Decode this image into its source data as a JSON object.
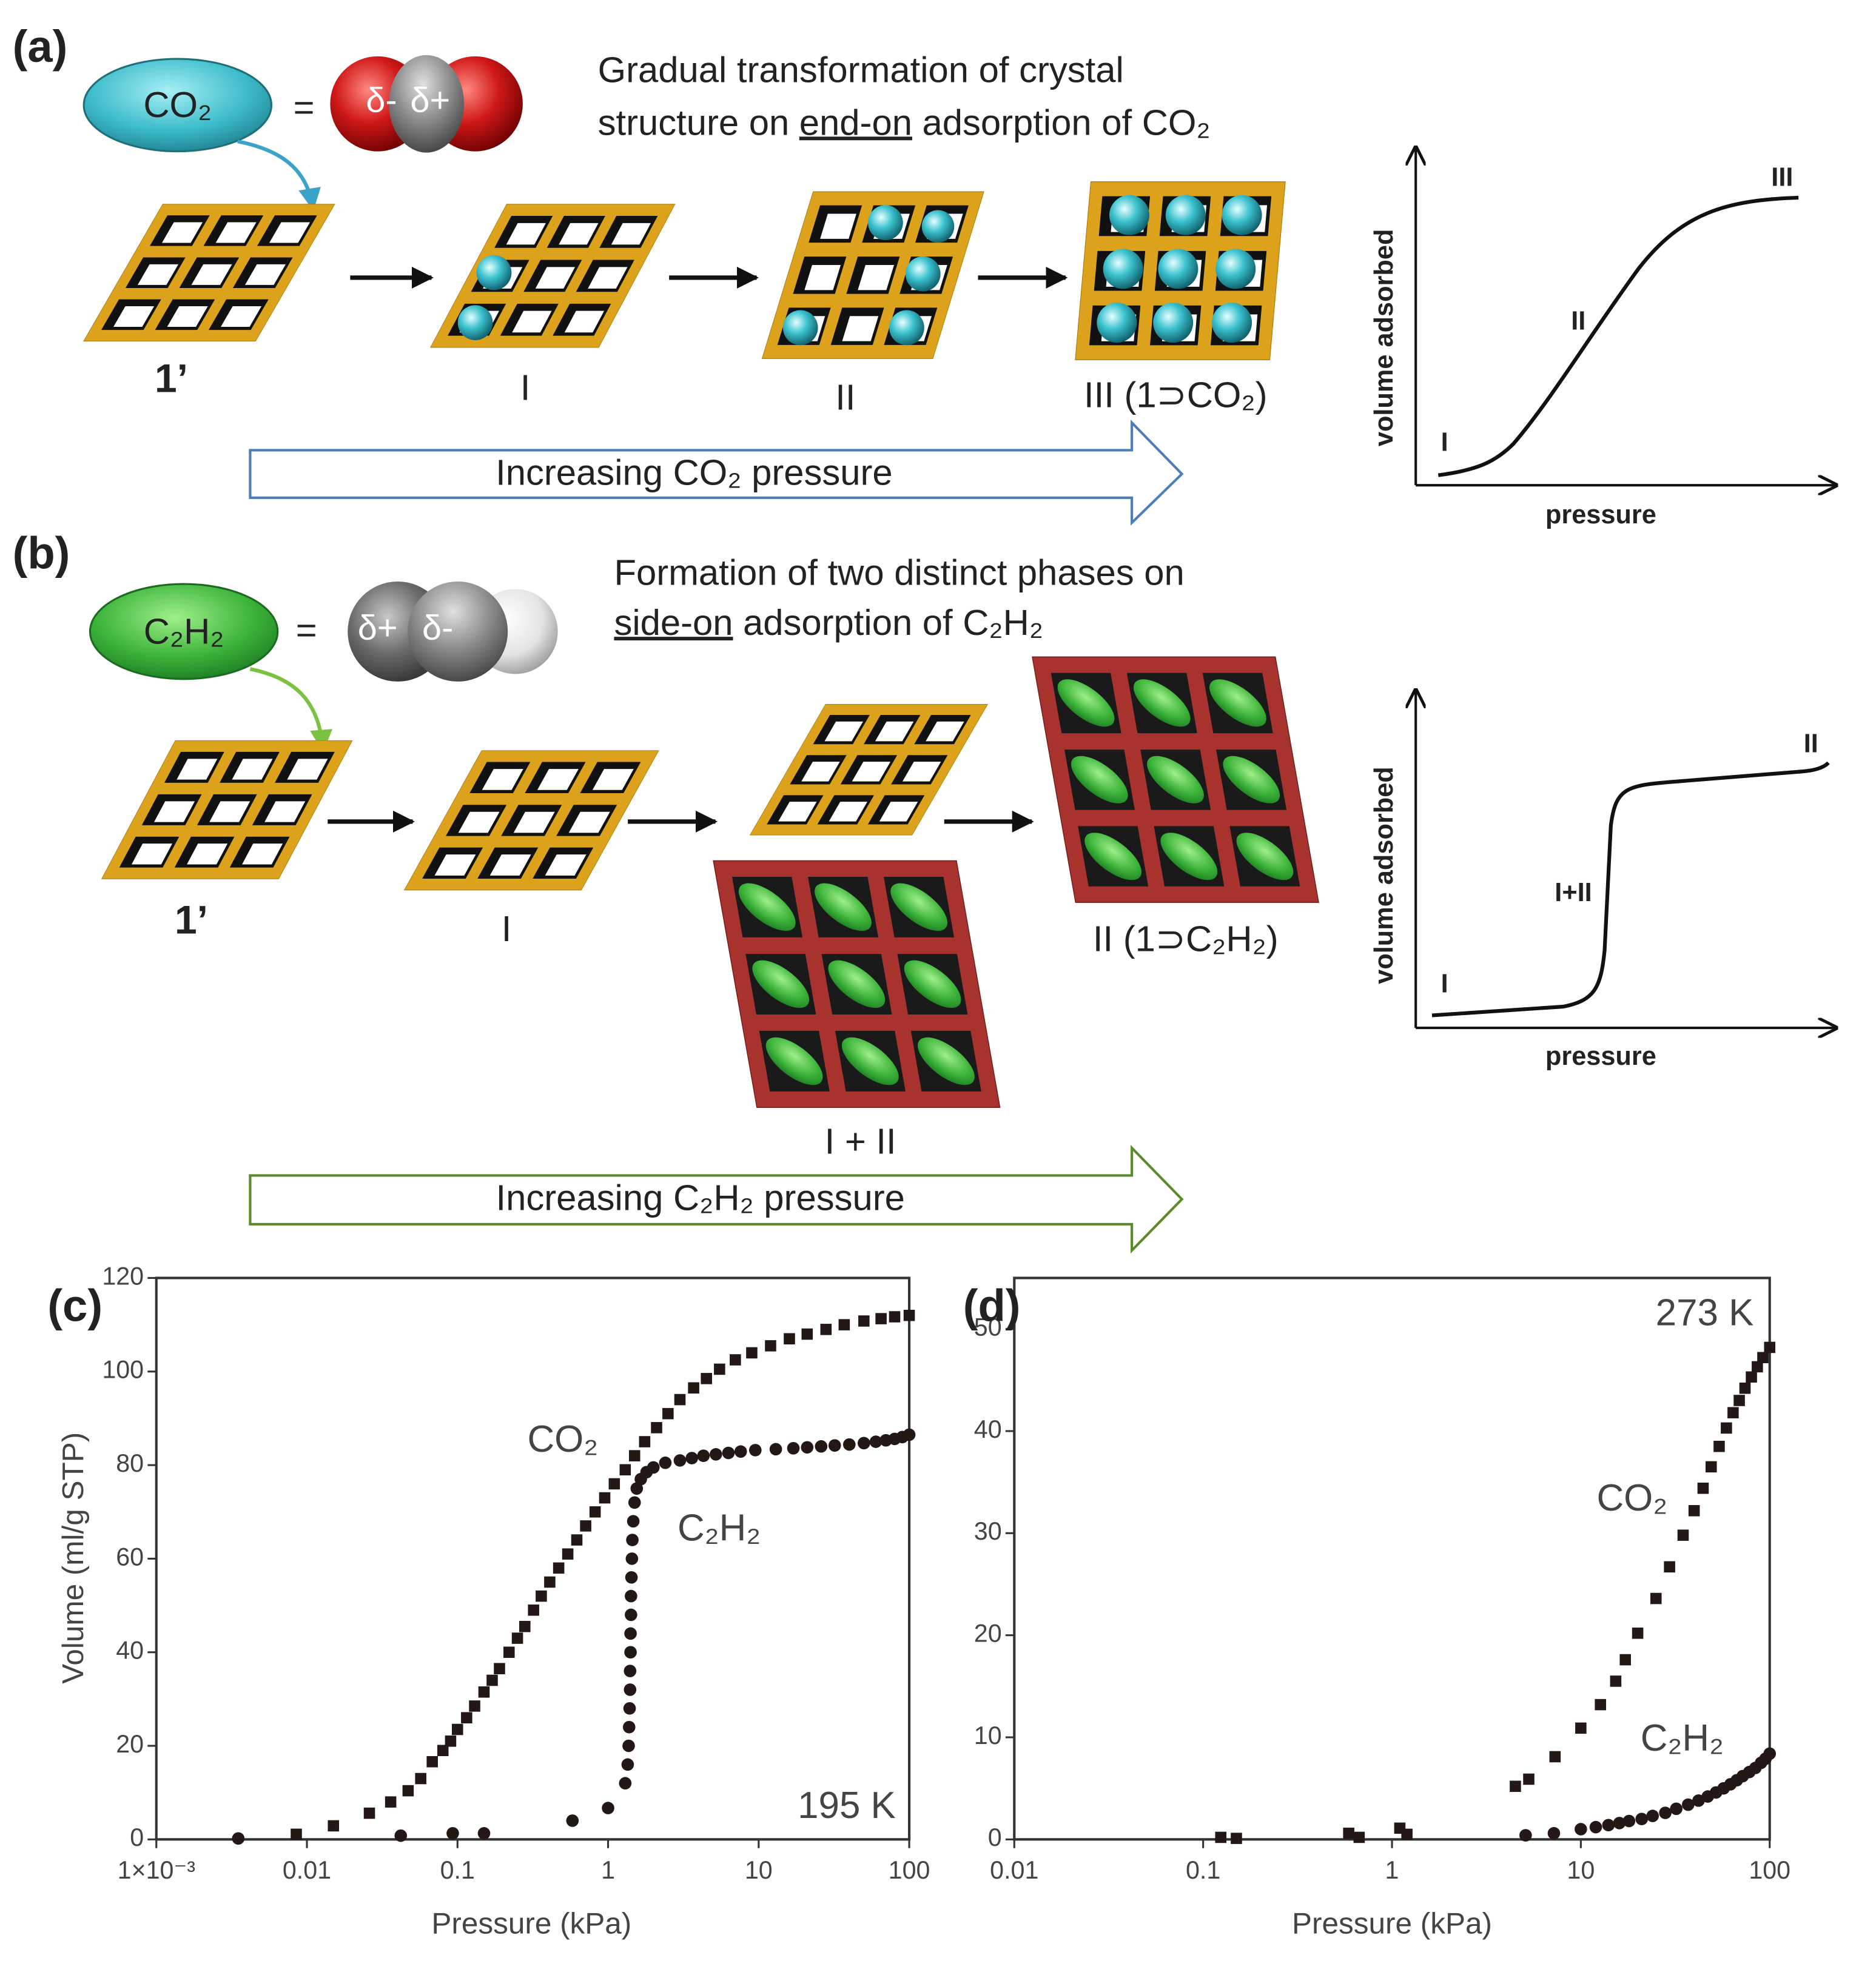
{
  "panel_a": {
    "label": "(a)",
    "molecule": "CO₂",
    "equals": "=",
    "charges": [
      "δ-",
      "δ+"
    ],
    "description": {
      "line1": "Gradual transformation of crystal",
      "line2": [
        "structure on",
        "end-on",
        "adsorption of CO₂"
      ]
    },
    "stages": [
      "1’",
      "I",
      "II",
      "III (1⊃CO₂)"
    ],
    "arrow": "Increasing CO₂ pressure",
    "sketch": {
      "y_label": "volume adsorbed",
      "x_label": "pressure",
      "stage_labels": [
        "I",
        "II",
        "III"
      ]
    }
  },
  "panel_b": {
    "label": "(b)",
    "molecule": "C₂H₂",
    "equals": "=",
    "charges": [
      "δ+",
      "δ-"
    ],
    "description": {
      "line1": "Formation of two distinct phases on",
      "line2": [
        "side-on",
        "adsorption of C₂H₂"
      ]
    },
    "stages": [
      "1’",
      "I",
      "I + II",
      "II (1⊃C₂H₂)"
    ],
    "arrow": "Increasing C₂H₂ pressure",
    "sketch": {
      "y_label": "volume adsorbed",
      "x_label": "pressure",
      "stage_labels": [
        "I",
        "I+II",
        "II"
      ]
    }
  },
  "chart_data": [
    {
      "type": "scatter",
      "panel_label": "(c)",
      "x_label": "Pressure (kPa)",
      "y_label": "Volume (ml/g STP)",
      "xscale": "log",
      "xlim": [
        0.001,
        100
      ],
      "xticks": [
        {
          "value": 0.001,
          "label": "1×10⁻³"
        },
        0.01,
        0.1,
        1,
        10,
        100
      ],
      "ylim": [
        0,
        120
      ],
      "yticks": [
        0,
        20,
        40,
        60,
        80,
        100,
        120
      ],
      "annotations": [
        "CO₂",
        "C₂H₂",
        "195 K"
      ],
      "series": [
        {
          "name": "CO₂",
          "marker": "square",
          "color": "#231815",
          "x": [
            0.0085,
            0.015,
            0.026,
            0.036,
            0.047,
            0.057,
            0.068,
            0.08,
            0.09,
            0.1,
            0.115,
            0.13,
            0.15,
            0.17,
            0.19,
            0.22,
            0.25,
            0.28,
            0.32,
            0.36,
            0.41,
            0.47,
            0.54,
            0.62,
            0.71,
            0.82,
            0.95,
            1.1,
            1.3,
            1.5,
            1.75,
            2.1,
            2.5,
            3,
            3.7,
            4.5,
            5.5,
            7,
            9,
            12,
            16,
            21,
            28,
            37,
            50,
            65,
            80,
            100
          ],
          "values": [
            1.1,
            2.9,
            5.6,
            8,
            10.4,
            13,
            16.6,
            19,
            21,
            23.5,
            26,
            28.5,
            31.5,
            34,
            36.5,
            40,
            43,
            45.5,
            49,
            52,
            55,
            58,
            61,
            64,
            67,
            70,
            73,
            76,
            79,
            82,
            85,
            88,
            91,
            94,
            96.5,
            98.5,
            100.5,
            102.5,
            104,
            105.5,
            107,
            108,
            109,
            110,
            110.8,
            111.3,
            111.7,
            112
          ]
        },
        {
          "name": "C₂H₂",
          "marker": "circle",
          "color": "#231815",
          "x": [
            0.0035,
            0.042,
            0.093,
            0.15,
            0.58,
            1.0,
            1.3,
            1.35,
            1.37,
            1.38,
            1.39,
            1.4,
            1.4,
            1.41,
            1.41,
            1.42,
            1.42,
            1.43,
            1.44,
            1.45,
            1.47,
            1.5,
            1.55,
            1.65,
            1.8,
            2.0,
            2.4,
            3,
            3.6,
            4.3,
            5.2,
            6.3,
            7.6,
            9.5,
            13,
            17,
            21,
            26,
            32,
            40,
            50,
            60,
            70,
            80,
            90,
            100
          ],
          "values": [
            0.2,
            0.8,
            1.3,
            1.3,
            4,
            6.7,
            12,
            16,
            20,
            24,
            28,
            32,
            36,
            40,
            44,
            48,
            52,
            56,
            60,
            64,
            68,
            72,
            75,
            77,
            78.5,
            79.5,
            80.5,
            81,
            81.5,
            82,
            82.3,
            82.6,
            82.9,
            83.2,
            83.4,
            83.6,
            83.8,
            84,
            84.2,
            84.4,
            84.7,
            85,
            85.3,
            85.6,
            86,
            86.5
          ]
        }
      ]
    },
    {
      "type": "scatter",
      "panel_label": "(d)",
      "x_label": "Pressure (kPa)",
      "xscale": "log",
      "xlim": [
        0.01,
        100
      ],
      "xticks": [
        0.01,
        0.1,
        1,
        10,
        100
      ],
      "ylim": [
        0,
        55
      ],
      "yticks": [
        0,
        10,
        20,
        30,
        40,
        50
      ],
      "annotations": [
        "273 K",
        "CO₂",
        "C₂H₂"
      ],
      "series": [
        {
          "name": "CO₂",
          "marker": "square",
          "color": "#231815",
          "x": [
            0.124,
            0.15,
            0.59,
            0.67,
            1.1,
            1.2,
            4.5,
            5.3,
            7.3,
            10,
            12.7,
            15.3,
            17.2,
            20,
            25,
            29.5,
            34.8,
            39.8,
            44.4,
            49,
            54,
            59,
            64,
            69,
            74,
            80,
            86,
            92,
            100
          ],
          "values": [
            0.2,
            0.1,
            0.6,
            0.2,
            1.1,
            0.5,
            5.2,
            5.9,
            8.1,
            10.9,
            13.2,
            15.5,
            17.6,
            20.2,
            23.6,
            26.7,
            29.8,
            32.2,
            34.4,
            36.5,
            38.5,
            40.3,
            41.8,
            43,
            44.2,
            45.3,
            46.3,
            47.2,
            48.2
          ]
        },
        {
          "name": "C₂H₂",
          "marker": "circle",
          "color": "#231815",
          "x": [
            5.1,
            7.2,
            10,
            12,
            14,
            16,
            18,
            21,
            24,
            28,
            32,
            37,
            42,
            47,
            52,
            57,
            62,
            67,
            72,
            78,
            84,
            90,
            95,
            100
          ],
          "values": [
            0.4,
            0.6,
            1.0,
            1.2,
            1.4,
            1.6,
            1.8,
            2.0,
            2.3,
            2.6,
            3.0,
            3.4,
            3.8,
            4.2,
            4.6,
            5.0,
            5.4,
            5.8,
            6.2,
            6.6,
            7.0,
            7.5,
            7.9,
            8.4
          ]
        }
      ]
    }
  ]
}
